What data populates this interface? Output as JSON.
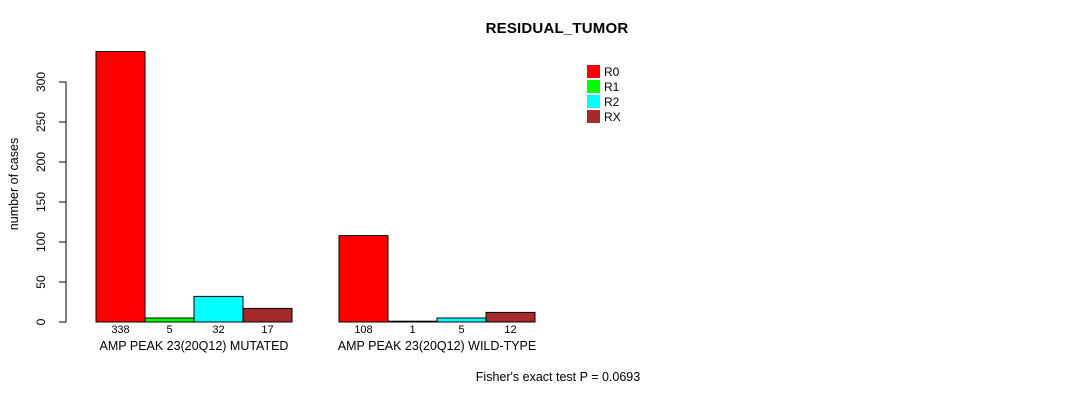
{
  "chart_data": {
    "type": "bar",
    "title": "RESIDUAL_TUMOR",
    "ylabel": "number of cases",
    "xlabel": "",
    "categories": [
      "AMP PEAK 23(20Q12) MUTATED",
      "AMP PEAK 23(20Q12) WILD-TYPE"
    ],
    "series": [
      {
        "name": "R0",
        "color": "#FF0000",
        "values": [
          338,
          108
        ]
      },
      {
        "name": "R1",
        "color": "#00FF00",
        "values": [
          5,
          1
        ]
      },
      {
        "name": "R2",
        "color": "#00FFFF",
        "values": [
          32,
          5
        ]
      },
      {
        "name": "RX",
        "color": "#A52A2A",
        "values": [
          17,
          12
        ]
      }
    ],
    "yticks": [
      0,
      50,
      100,
      150,
      200,
      250,
      300
    ],
    "ylim": [
      0,
      350
    ],
    "grid": false,
    "legend_position": "top-right",
    "bar_value_labels_shown": true,
    "annotation": "Fisher's exact test P = 0.0693"
  }
}
